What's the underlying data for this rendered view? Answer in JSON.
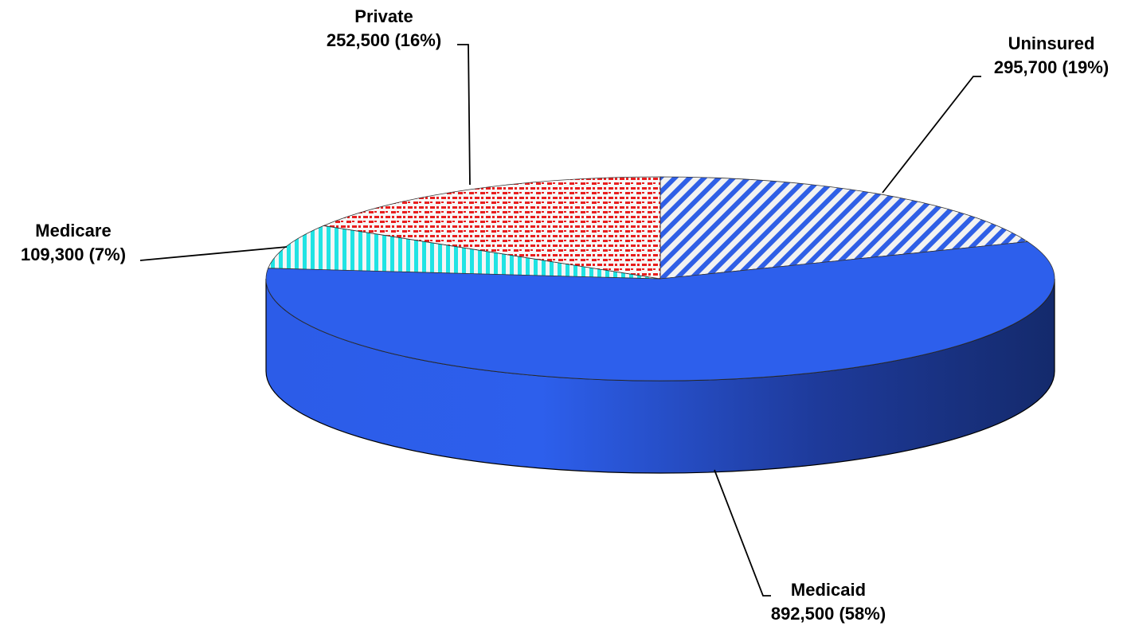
{
  "chart_data": {
    "type": "pie",
    "style": "3d-tilted",
    "slices": [
      {
        "name": "Uninsured",
        "value": 295700,
        "value_label": "295,700 (19%)",
        "percent": 19,
        "color": "#2f5fe6",
        "pattern": "diagonal-stripes"
      },
      {
        "name": "Medicaid",
        "value": 892500,
        "value_label": "892,500 (58%)",
        "percent": 58,
        "color": "#2d5fec",
        "pattern": "solid"
      },
      {
        "name": "Medicare",
        "value": 109300,
        "value_label": "109,300 (7%)",
        "percent": 7,
        "color": "#21e3e3",
        "pattern": "vertical-stripes"
      },
      {
        "name": "Private",
        "value": 252500,
        "value_label": "252,500 (16%)",
        "percent": 16,
        "color": "#e81e1e",
        "pattern": "dots"
      }
    ],
    "legend": "none"
  }
}
